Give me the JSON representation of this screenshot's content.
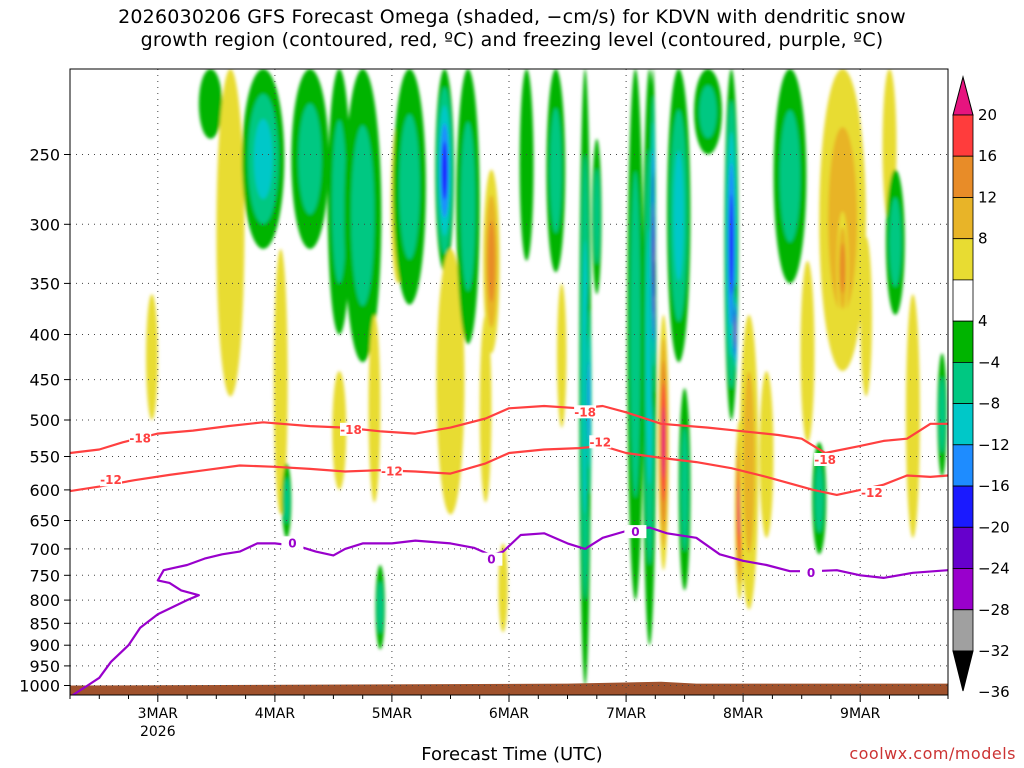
{
  "title_line1": "2026030206 GFS Forecast Omega (shaded, −cm/s) for KDVN with dendritic snow",
  "title_line2": "growth region (contoured, red, ºC) and freezing level (contoured, purple, ºC)",
  "credit": "coolwx.com/models",
  "colors": {
    "omega_bins": [
      "#000000",
      "#a0a0a0",
      "#9900cc",
      "#6600cc",
      "#1a1aff",
      "#1e8cff",
      "#00c8c8",
      "#00c882",
      "#00b400",
      "#ffffff",
      "#e8dc32",
      "#e8b428",
      "#e88c28",
      "#ff3c3c",
      "#e6147f"
    ],
    "dgz": "#ff4040",
    "freezing": "#9900cc",
    "terrain": "#a0522d"
  },
  "chart_data": {
    "type": "heatmap",
    "title": "2026030206 GFS Forecast Omega (shaded, −cm/s) for KDVN with dendritic snow growth region (contoured, red, ºC) and freezing level (contoured, purple, ºC)",
    "xlabel": "Forecast Time (UTC)",
    "ylabel": "",
    "x_ticks": [
      {
        "day": 3,
        "label": "3MAR",
        "sub": "2026"
      },
      {
        "day": 4,
        "label": "4MAR",
        "sub": ""
      },
      {
        "day": 5,
        "label": "5MAR",
        "sub": ""
      },
      {
        "day": 6,
        "label": "6MAR",
        "sub": ""
      },
      {
        "day": 7,
        "label": "7MAR",
        "sub": ""
      },
      {
        "day": 8,
        "label": "8MAR",
        "sub": ""
      },
      {
        "day": 9,
        "label": "9MAR",
        "sub": ""
      }
    ],
    "xlim_days": [
      2.25,
      9.75
    ],
    "y_ticks": [
      "250",
      "300",
      "350",
      "400",
      "450",
      "500",
      "550",
      "600",
      "650",
      "700",
      "750",
      "800",
      "850",
      "900",
      "950",
      "1000"
    ],
    "ylim_hpa": [
      1025,
      200
    ],
    "y_scale": "log-pressure",
    "grid": true,
    "colorbar": {
      "labels": [
        "20",
        "16",
        "12",
        "8",
        "4",
        "−4",
        "−8",
        "−12",
        "−16",
        "−20",
        "−24",
        "−28",
        "−32",
        "−36"
      ],
      "bounds": [
        -36,
        -32,
        -28,
        -24,
        -20,
        -16,
        -12,
        -8,
        -4,
        4,
        8,
        12,
        16,
        20
      ]
    },
    "omega_features": [
      {
        "day": 2.95,
        "hpa": 430,
        "wd": 0.05,
        "wp": 70,
        "v": 5
      },
      {
        "day": 3.45,
        "hpa": 200,
        "wd": 0.1,
        "wp": 40,
        "v": -8
      },
      {
        "day": 3.62,
        "hpa": 330,
        "wd": 0.12,
        "wp": 140,
        "v": 5
      },
      {
        "day": 3.9,
        "hpa": 260,
        "wd": 0.18,
        "wp": 60,
        "v": -13
      },
      {
        "day": 4.05,
        "hpa": 480,
        "wd": 0.06,
        "wp": 160,
        "v": 5
      },
      {
        "day": 4.1,
        "hpa": 620,
        "wd": 0.04,
        "wp": 60,
        "v": -9
      },
      {
        "day": 4.3,
        "hpa": 250,
        "wd": 0.16,
        "wp": 70,
        "v": -10
      },
      {
        "day": 4.55,
        "hpa": 280,
        "wd": 0.1,
        "wp": 120,
        "v": -10
      },
      {
        "day": 4.55,
        "hpa": 520,
        "wd": 0.06,
        "wp": 80,
        "v": 6
      },
      {
        "day": 4.75,
        "hpa": 270,
        "wd": 0.16,
        "wp": 160,
        "v": -11
      },
      {
        "day": 4.85,
        "hpa": 500,
        "wd": 0.05,
        "wp": 120,
        "v": 5
      },
      {
        "day": 4.9,
        "hpa": 820,
        "wd": 0.04,
        "wp": 90,
        "v": -9
      },
      {
        "day": 5.05,
        "hpa": 290,
        "wd": 0.06,
        "wp": 60,
        "v": 10
      },
      {
        "day": 5.15,
        "hpa": 250,
        "wd": 0.14,
        "wp": 120,
        "v": -10
      },
      {
        "day": 5.45,
        "hpa": 250,
        "wd": 0.08,
        "wp": 90,
        "v": -22
      },
      {
        "day": 5.5,
        "hpa": 480,
        "wd": 0.12,
        "wp": 160,
        "v": 5
      },
      {
        "day": 5.65,
        "hpa": 260,
        "wd": 0.1,
        "wp": 150,
        "v": -9
      },
      {
        "day": 5.85,
        "hpa": 340,
        "wd": 0.07,
        "wp": 80,
        "v": 15
      },
      {
        "day": 5.8,
        "hpa": 500,
        "wd": 0.05,
        "wp": 120,
        "v": 6
      },
      {
        "day": 5.95,
        "hpa": 780,
        "wd": 0.04,
        "wp": 90,
        "v": 5
      },
      {
        "day": 6.15,
        "hpa": 250,
        "wd": 0.06,
        "wp": 80,
        "v": -8
      },
      {
        "day": 6.4,
        "hpa": 240,
        "wd": 0.08,
        "wp": 100,
        "v": -10
      },
      {
        "day": 6.45,
        "hpa": 430,
        "wd": 0.04,
        "wp": 80,
        "v": 5
      },
      {
        "day": 6.65,
        "hpa": 600,
        "wd": 0.05,
        "wp": 400,
        "v": -14
      },
      {
        "day": 6.68,
        "hpa": 500,
        "wd": 0.025,
        "wp": 150,
        "v": -20
      },
      {
        "day": 6.75,
        "hpa": 300,
        "wd": 0.04,
        "wp": 60,
        "v": -9
      },
      {
        "day": 7.08,
        "hpa": 500,
        "wd": 0.07,
        "wp": 300,
        "v": -9
      },
      {
        "day": 7.2,
        "hpa": 450,
        "wd": 0.06,
        "wp": 450,
        "v": -14
      },
      {
        "day": 7.23,
        "hpa": 330,
        "wd": 0.025,
        "wp": 170,
        "v": -26
      },
      {
        "day": 7.24,
        "hpa": 360,
        "wd": 0.008,
        "wp": 100,
        "v": -40
      },
      {
        "day": 7.32,
        "hpa": 560,
        "wd": 0.045,
        "wp": 180,
        "v": 21
      },
      {
        "day": 7.45,
        "hpa": 280,
        "wd": 0.1,
        "wp": 150,
        "v": -13
      },
      {
        "day": 7.5,
        "hpa": 620,
        "wd": 0.05,
        "wp": 160,
        "v": -9
      },
      {
        "day": 7.7,
        "hpa": 200,
        "wd": 0.12,
        "wp": 50,
        "v": -9
      },
      {
        "day": 7.9,
        "hpa": 340,
        "wd": 0.06,
        "wp": 160,
        "v": -21
      },
      {
        "day": 7.93,
        "hpa": 400,
        "wd": 0.02,
        "wp": 50,
        "v": -29
      },
      {
        "day": 7.97,
        "hpa": 650,
        "wd": 0.04,
        "wp": 150,
        "v": 21
      },
      {
        "day": 8.05,
        "hpa": 600,
        "wd": 0.08,
        "wp": 220,
        "v": 9
      },
      {
        "day": 8.2,
        "hpa": 560,
        "wd": 0.06,
        "wp": 120,
        "v": 6
      },
      {
        "day": 8.4,
        "hpa": 250,
        "wd": 0.14,
        "wp": 100,
        "v": -11
      },
      {
        "day": 8.55,
        "hpa": 430,
        "wd": 0.06,
        "wp": 100,
        "v": 6
      },
      {
        "day": 8.65,
        "hpa": 620,
        "wd": 0.06,
        "wp": 90,
        "v": -9
      },
      {
        "day": 8.85,
        "hpa": 320,
        "wd": 0.2,
        "wp": 120,
        "v": 11
      },
      {
        "day": 8.85,
        "hpa": 340,
        "wd": 0.05,
        "wp": 50,
        "v": 16
      },
      {
        "day": 9.05,
        "hpa": 390,
        "wd": 0.05,
        "wp": 80,
        "v": 5
      },
      {
        "day": 9.25,
        "hpa": 230,
        "wd": 0.06,
        "wp": 70,
        "v": 5
      },
      {
        "day": 9.3,
        "hpa": 320,
        "wd": 0.08,
        "wp": 60,
        "v": -9
      },
      {
        "day": 9.45,
        "hpa": 520,
        "wd": 0.06,
        "wp": 160,
        "v": 5
      },
      {
        "day": 9.7,
        "hpa": 500,
        "wd": 0.04,
        "wp": 80,
        "v": -9
      }
    ],
    "contours": [
      {
        "label": "-18",
        "kind": "dgz",
        "label_at": [
          [
            2.85,
            525
          ],
          [
            4.65,
            513
          ],
          [
            6.65,
            490
          ],
          [
            8.7,
            555
          ]
        ],
        "points": [
          [
            2.25,
            545
          ],
          [
            2.5,
            540
          ],
          [
            2.7,
            530
          ],
          [
            3.0,
            518
          ],
          [
            3.3,
            514
          ],
          [
            3.6,
            508
          ],
          [
            3.9,
            503
          ],
          [
            4.3,
            508
          ],
          [
            4.6,
            510
          ],
          [
            4.9,
            515
          ],
          [
            5.2,
            518
          ],
          [
            5.5,
            510
          ],
          [
            5.8,
            498
          ],
          [
            6.0,
            485
          ],
          [
            6.3,
            482
          ],
          [
            6.6,
            485
          ],
          [
            6.8,
            482
          ],
          [
            7.0,
            490
          ],
          [
            7.3,
            505
          ],
          [
            7.7,
            510
          ],
          [
            8.0,
            515
          ],
          [
            8.3,
            520
          ],
          [
            8.5,
            525
          ],
          [
            8.7,
            545
          ],
          [
            9.0,
            535
          ],
          [
            9.2,
            528
          ],
          [
            9.4,
            525
          ],
          [
            9.6,
            505
          ],
          [
            9.75,
            505
          ]
        ]
      },
      {
        "label": "-12",
        "kind": "dgz",
        "label_at": [
          [
            2.6,
            585
          ],
          [
            5.0,
            572
          ],
          [
            6.78,
            530
          ],
          [
            9.1,
            605
          ]
        ],
        "points": [
          [
            2.25,
            602
          ],
          [
            2.5,
            595
          ],
          [
            2.8,
            585
          ],
          [
            3.1,
            577
          ],
          [
            3.4,
            570
          ],
          [
            3.7,
            563
          ],
          [
            4.0,
            565
          ],
          [
            4.3,
            568
          ],
          [
            4.6,
            572
          ],
          [
            4.9,
            570
          ],
          [
            5.2,
            572
          ],
          [
            5.5,
            575
          ],
          [
            5.8,
            560
          ],
          [
            6.0,
            545
          ],
          [
            6.3,
            540
          ],
          [
            6.6,
            538
          ],
          [
            6.8,
            535
          ],
          [
            7.0,
            545
          ],
          [
            7.3,
            552
          ],
          [
            7.6,
            558
          ],
          [
            7.9,
            567
          ],
          [
            8.2,
            580
          ],
          [
            8.4,
            590
          ],
          [
            8.6,
            600
          ],
          [
            8.8,
            608
          ],
          [
            9.0,
            600
          ],
          [
            9.2,
            592
          ],
          [
            9.4,
            578
          ],
          [
            9.6,
            580
          ],
          [
            9.75,
            578
          ]
        ]
      },
      {
        "label": "0",
        "kind": "freezing",
        "label_at": [
          [
            4.15,
            690
          ],
          [
            5.85,
            720
          ],
          [
            7.08,
            670
          ],
          [
            8.58,
            745
          ]
        ],
        "points": [
          [
            2.25,
            1030
          ],
          [
            2.4,
            1000
          ],
          [
            2.5,
            980
          ],
          [
            2.6,
            940
          ],
          [
            2.75,
            900
          ],
          [
            2.85,
            860
          ],
          [
            3.0,
            830
          ],
          [
            3.25,
            800
          ],
          [
            3.35,
            790
          ],
          [
            3.2,
            780
          ],
          [
            3.1,
            765
          ],
          [
            3.0,
            760
          ],
          [
            3.05,
            740
          ],
          [
            3.15,
            735
          ],
          [
            3.25,
            730
          ],
          [
            3.4,
            718
          ],
          [
            3.55,
            710
          ],
          [
            3.7,
            705
          ],
          [
            3.75,
            700
          ],
          [
            3.85,
            690
          ],
          [
            4.0,
            690
          ],
          [
            4.2,
            695
          ],
          [
            4.35,
            705
          ],
          [
            4.5,
            712
          ],
          [
            4.6,
            700
          ],
          [
            4.75,
            690
          ],
          [
            5.0,
            690
          ],
          [
            5.2,
            685
          ],
          [
            5.5,
            690
          ],
          [
            5.7,
            698
          ],
          [
            5.85,
            712
          ],
          [
            5.95,
            705
          ],
          [
            6.1,
            675
          ],
          [
            6.3,
            672
          ],
          [
            6.5,
            690
          ],
          [
            6.65,
            700
          ],
          [
            6.8,
            680
          ],
          [
            7.0,
            668
          ],
          [
            7.2,
            662
          ],
          [
            7.35,
            672
          ],
          [
            7.6,
            680
          ],
          [
            7.8,
            710
          ],
          [
            8.0,
            722
          ],
          [
            8.2,
            730
          ],
          [
            8.4,
            742
          ],
          [
            8.6,
            742
          ],
          [
            8.8,
            740
          ],
          [
            9.0,
            750
          ],
          [
            9.2,
            755
          ],
          [
            9.45,
            745
          ],
          [
            9.75,
            740
          ]
        ]
      }
    ]
  }
}
